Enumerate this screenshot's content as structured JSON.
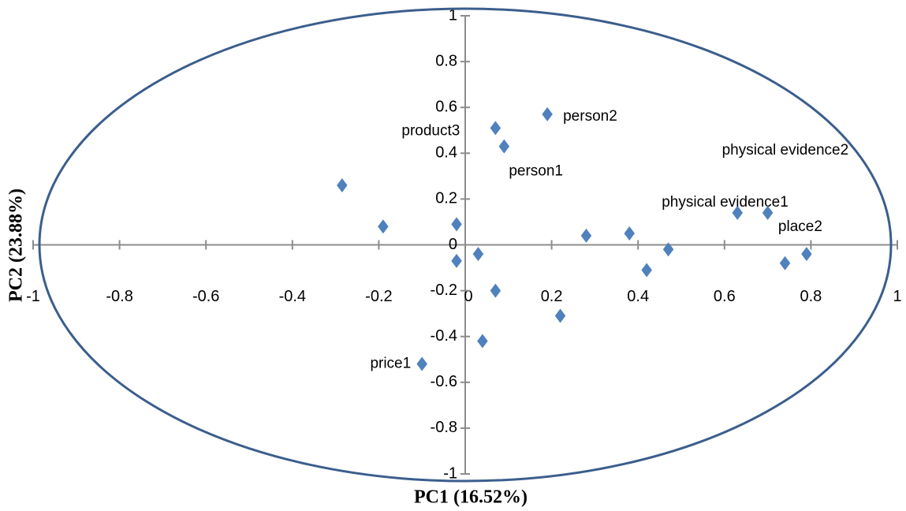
{
  "chart_data": {
    "type": "scatter",
    "x_label": "PC1 (16.52%)",
    "y_label": "PC2 (23.88%)",
    "xlim": [
      -1,
      1
    ],
    "ylim": [
      -1,
      1
    ],
    "xticks": [
      -1,
      -0.8,
      -0.6,
      -0.4,
      -0.2,
      0,
      0.2,
      0.4,
      0.6,
      0.8,
      1
    ],
    "yticks": [
      -1,
      -0.8,
      -0.6,
      -0.4,
      -0.2,
      0,
      0.2,
      0.4,
      0.6,
      0.8,
      1
    ],
    "color": "#4f81bd",
    "circle_color": "#3b5e8c",
    "x": [
      -0.285,
      -0.19,
      -0.02,
      -0.02,
      0.03,
      0.07,
      0.09,
      0.19,
      0.07,
      0.22,
      0.04,
      -0.1,
      0.28,
      0.38,
      0.47,
      0.42,
      0.63,
      0.7,
      0.79,
      0.74
    ],
    "values": [
      0.26,
      0.08,
      0.09,
      -0.07,
      -0.04,
      0.51,
      0.43,
      0.57,
      -0.2,
      -0.31,
      -0.42,
      -0.52,
      0.04,
      0.05,
      -0.02,
      -0.11,
      0.14,
      0.14,
      -0.04,
      -0.08
    ],
    "point_labels": [
      null,
      null,
      null,
      null,
      null,
      "product3",
      "person1",
      "person2",
      null,
      null,
      null,
      "price1",
      null,
      null,
      null,
      null,
      "physical evidence1",
      "physical evidence2",
      "place2",
      null
    ]
  }
}
